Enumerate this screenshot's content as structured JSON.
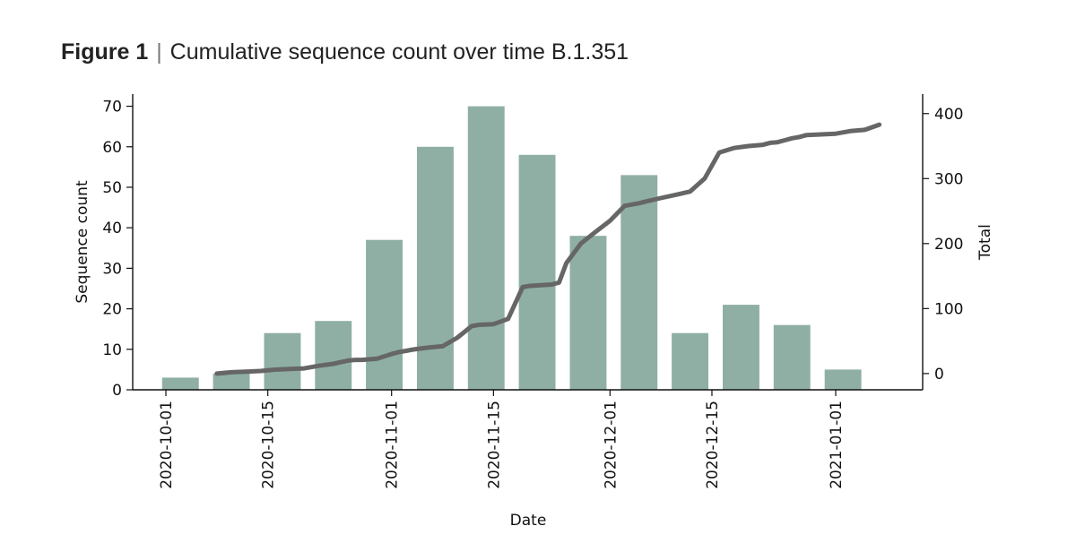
{
  "figure": {
    "label": "Figure 1",
    "separator": "|",
    "caption": "Cumulative sequence count over time B.1.351"
  },
  "chart_data": {
    "type": "bar",
    "xlabel": "Date",
    "ylabel": "Sequence count",
    "y2label": "Total",
    "x_ticks": [
      "2020-10-01",
      "2020-10-15",
      "2020-11-01",
      "2020-11-15",
      "2020-12-01",
      "2020-12-15",
      "2021-01-01"
    ],
    "ylim": [
      0,
      73
    ],
    "y_ticks": [
      0,
      10,
      20,
      30,
      40,
      50,
      60,
      70
    ],
    "y2lim": [
      -25,
      430
    ],
    "y2_ticks": [
      0,
      100,
      200,
      300,
      400
    ],
    "grid": false,
    "colors": {
      "bars": "#8fafa4",
      "line": "#666666",
      "axis": "#111111"
    },
    "bars": {
      "dates": [
        "2020-10-03",
        "2020-10-10",
        "2020-10-17",
        "2020-10-24",
        "2020-10-31",
        "2020-11-07",
        "2020-11-14",
        "2020-11-21",
        "2020-11-28",
        "2020-12-05",
        "2020-12-12",
        "2020-12-19",
        "2020-12-26",
        "2021-01-02"
      ],
      "values": [
        3,
        4,
        14,
        17,
        37,
        60,
        70,
        58,
        38,
        53,
        14,
        21,
        16,
        5
      ]
    },
    "line": {
      "x": [
        "2020-10-08",
        "2020-10-10",
        "2020-10-12",
        "2020-10-14",
        "2020-10-16",
        "2020-10-18",
        "2020-10-20",
        "2020-10-22",
        "2020-10-24",
        "2020-10-26",
        "2020-10-27",
        "2020-10-28",
        "2020-10-30",
        "2020-11-01",
        "2020-11-02",
        "2020-11-03",
        "2020-11-04",
        "2020-11-06",
        "2020-11-08",
        "2020-11-10",
        "2020-11-11",
        "2020-11-12",
        "2020-11-13",
        "2020-11-15",
        "2020-11-17",
        "2020-11-19",
        "2020-11-20",
        "2020-11-23",
        "2020-11-24",
        "2020-11-25",
        "2020-11-27",
        "2020-11-29",
        "2020-12-01",
        "2020-12-03",
        "2020-12-05",
        "2020-12-06",
        "2020-12-08",
        "2020-12-10",
        "2020-12-12",
        "2020-12-14",
        "2020-12-16",
        "2020-12-18",
        "2020-12-20",
        "2020-12-22",
        "2020-12-23",
        "2020-12-24",
        "2020-12-25",
        "2020-12-26",
        "2020-12-27",
        "2020-12-28",
        "2021-01-01",
        "2021-01-03",
        "2021-01-05",
        "2021-01-07"
      ],
      "y": [
        0,
        2,
        3,
        4,
        6,
        7,
        8,
        12,
        15,
        20,
        21,
        21,
        23,
        30,
        33,
        35,
        37,
        40,
        42,
        55,
        64,
        73,
        75,
        76,
        84,
        133,
        135,
        137,
        140,
        170,
        200,
        218,
        235,
        258,
        262,
        265,
        270,
        275,
        280,
        300,
        340,
        347,
        350,
        352,
        355,
        356,
        359,
        362,
        364,
        367,
        369,
        373,
        375,
        383
      ]
    }
  }
}
